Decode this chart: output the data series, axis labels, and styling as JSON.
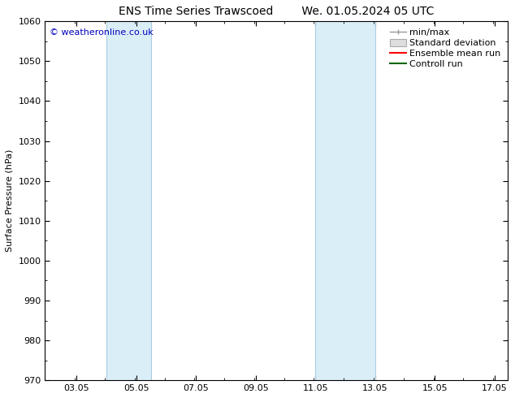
{
  "title_left": "ENS Time Series Trawscoed",
  "title_right": "We. 01.05.2024 05 UTC",
  "ylabel": "Surface Pressure (hPa)",
  "ylim": [
    970,
    1060
  ],
  "yticks": [
    970,
    980,
    990,
    1000,
    1010,
    1020,
    1030,
    1040,
    1050,
    1060
  ],
  "xlim": [
    2.0,
    17.5
  ],
  "xticks": [
    3.05,
    5.05,
    7.05,
    9.05,
    11.05,
    13.05,
    15.05,
    17.05
  ],
  "xticklabels": [
    "03.05",
    "05.05",
    "07.05",
    "09.05",
    "11.05",
    "13.05",
    "15.05",
    "17.05"
  ],
  "shade_bands": [
    {
      "xmin": 4.05,
      "xmax": 5.55
    },
    {
      "xmin": 11.05,
      "xmax": 13.05
    }
  ],
  "shade_color": "#daeef8",
  "shade_edge_color": "#aacce0",
  "copyright_text": "© weatheronline.co.uk",
  "copyright_color": "#0000bb",
  "legend_labels": [
    "min/max",
    "Standard deviation",
    "Ensemble mean run",
    "Controll run"
  ],
  "legend_colors": [
    "#aaaaaa",
    "#cccccc",
    "#ff0000",
    "#006600"
  ],
  "bg_color": "#ffffff",
  "font_family": "DejaVu Sans",
  "title_fontsize": 10,
  "axis_label_fontsize": 8,
  "tick_fontsize": 8,
  "legend_fontsize": 8
}
